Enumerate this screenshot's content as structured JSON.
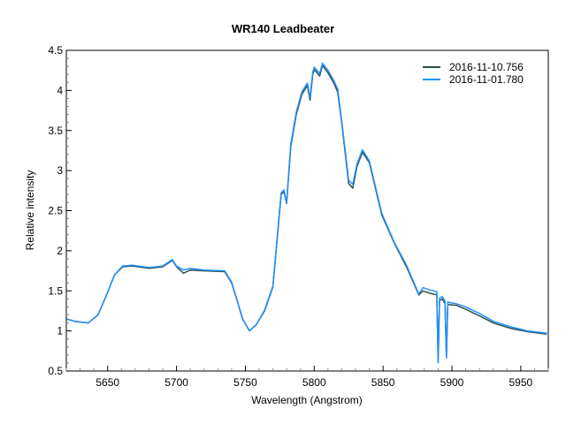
{
  "chart_data": {
    "type": "line",
    "title": "WR140   Leadbeater",
    "xlabel": "Wavelength (Angstrom)",
    "ylabel": "Relative intensity",
    "xlim": [
      5620,
      5970
    ],
    "ylim": [
      0.5,
      4.5
    ],
    "xticks": [
      5650,
      5700,
      5750,
      5800,
      5850,
      5900,
      5950
    ],
    "xtick_labels": [
      "5650",
      "5700",
      "5750",
      "5800",
      "5850",
      "5900",
      "5950"
    ],
    "yticks": [
      0.5,
      1,
      1.5,
      2,
      2.5,
      3,
      3.5,
      4,
      4.5
    ],
    "ytick_labels": [
      "0.5",
      "1",
      "1.5",
      "2",
      "2.5",
      "3",
      "3.5",
      "4",
      "4.5"
    ],
    "grid": false,
    "legend_position": "upper right",
    "series": [
      {
        "name": "2016-11-10.756",
        "color": "#2f4f4f",
        "x": [
          5620,
          5626,
          5636,
          5643,
          5649,
          5655,
          5661,
          5668,
          5680,
          5690,
          5697,
          5700,
          5705,
          5710,
          5720,
          5735,
          5740,
          5744,
          5748,
          5753,
          5758,
          5764,
          5770,
          5776,
          5778,
          5780,
          5783,
          5787,
          5791,
          5795,
          5797,
          5799,
          5800,
          5804,
          5806,
          5810,
          5814,
          5817,
          5820,
          5825,
          5828,
          5831,
          5835,
          5840,
          5849,
          5858,
          5867,
          5876,
          5879,
          5884,
          5889,
          5890,
          5891,
          5893,
          5895,
          5896,
          5897,
          5903,
          5910,
          5916,
          5921,
          5930,
          5943,
          5955,
          5969
        ],
        "y": [
          1.15,
          1.12,
          1.1,
          1.2,
          1.44,
          1.7,
          1.8,
          1.81,
          1.78,
          1.8,
          1.88,
          1.8,
          1.72,
          1.76,
          1.75,
          1.74,
          1.6,
          1.38,
          1.15,
          1.0,
          1.08,
          1.25,
          1.55,
          2.7,
          2.74,
          2.59,
          3.3,
          3.7,
          3.95,
          4.06,
          3.88,
          4.2,
          4.26,
          4.18,
          4.31,
          4.22,
          4.1,
          3.98,
          3.6,
          2.84,
          2.78,
          3.05,
          3.23,
          3.1,
          2.45,
          2.1,
          1.8,
          1.45,
          1.5,
          1.47,
          1.45,
          0.62,
          1.38,
          1.4,
          1.34,
          0.68,
          1.33,
          1.32,
          1.27,
          1.22,
          1.18,
          1.1,
          1.03,
          0.99,
          0.96
        ]
      },
      {
        "name": "2016-11-01.780",
        "color": "#1e90ff",
        "x": [
          5620,
          5626,
          5636,
          5643,
          5649,
          5655,
          5661,
          5668,
          5680,
          5690,
          5697,
          5700,
          5705,
          5710,
          5720,
          5735,
          5740,
          5744,
          5748,
          5753,
          5758,
          5764,
          5770,
          5776,
          5778,
          5780,
          5783,
          5787,
          5791,
          5795,
          5797,
          5799,
          5800,
          5804,
          5806,
          5810,
          5814,
          5817,
          5820,
          5825,
          5828,
          5831,
          5835,
          5840,
          5849,
          5858,
          5867,
          5876,
          5879,
          5884,
          5889,
          5890,
          5891,
          5893,
          5895,
          5896,
          5897,
          5903,
          5910,
          5916,
          5921,
          5930,
          5943,
          5955,
          5969
        ],
        "y": [
          1.15,
          1.12,
          1.1,
          1.2,
          1.44,
          1.7,
          1.81,
          1.82,
          1.79,
          1.81,
          1.89,
          1.81,
          1.76,
          1.78,
          1.76,
          1.75,
          1.61,
          1.38,
          1.15,
          1.0,
          1.08,
          1.26,
          1.56,
          2.72,
          2.76,
          2.6,
          3.33,
          3.73,
          3.98,
          4.09,
          3.91,
          4.23,
          4.29,
          4.21,
          4.34,
          4.25,
          4.13,
          4.02,
          3.62,
          2.88,
          2.83,
          3.08,
          3.26,
          3.12,
          2.47,
          2.11,
          1.82,
          1.46,
          1.54,
          1.51,
          1.49,
          0.6,
          1.41,
          1.43,
          1.37,
          0.66,
          1.36,
          1.34,
          1.3,
          1.25,
          1.21,
          1.12,
          1.05,
          1.0,
          0.97
        ]
      }
    ]
  },
  "legend": {
    "items": [
      {
        "label": "2016-11-10.756",
        "color": "#2f4f4f"
      },
      {
        "label": "2016-11-01.780",
        "color": "#1e90ff"
      }
    ]
  }
}
